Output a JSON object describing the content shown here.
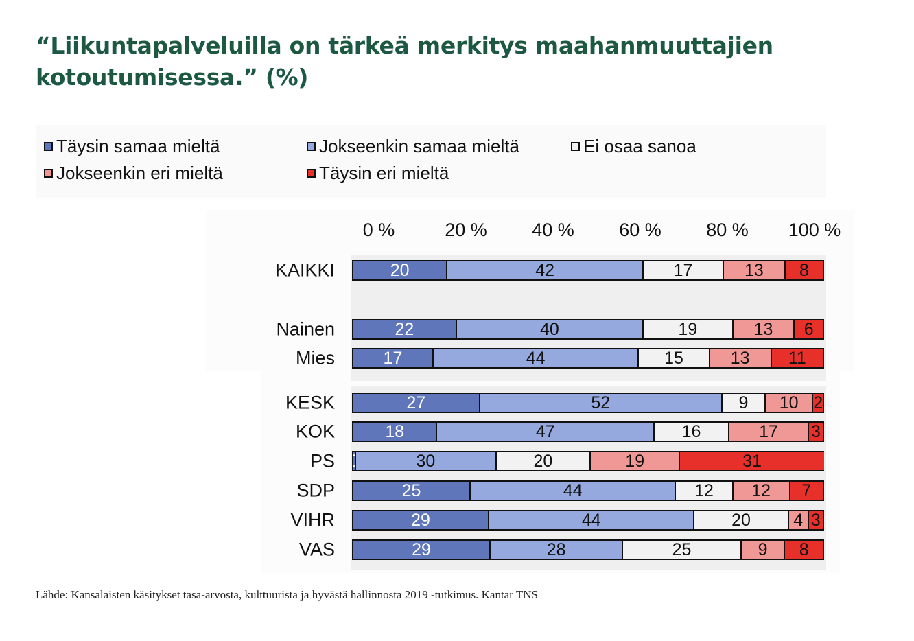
{
  "title": "“Liikuntapalveluilla on tärkeä merkitys maahanmuuttajien kotoutumisessa.” (%)",
  "source": "Lähde: Kansalaisten käsitykset tasa-arvosta, kulttuurista ja hyvästä hallinnosta 2019 -tutkimus. Kantar TNS",
  "chart_data": {
    "type": "bar",
    "orientation": "horizontal-stacked-100",
    "title": "“Liikuntapalveluilla on tärkeä merkitys maahanmuuttajien kotoutumisessa.” (%)",
    "xlim": [
      0,
      100
    ],
    "x_ticks": [
      "0 %",
      "20 %",
      "40 %",
      "60 %",
      "80 %",
      "100 %"
    ],
    "legend_position": "top",
    "categories": [
      "KAIKKI",
      "Nainen",
      "Mies",
      "KESK",
      "KOK",
      "PS",
      "SDP",
      "VIHR",
      "VAS"
    ],
    "series": [
      {
        "name": "Täysin samaa mieltä",
        "color": "#6076bb",
        "values": [
          20,
          22,
          17,
          27,
          18,
          0,
          25,
          29,
          29
        ]
      },
      {
        "name": "Jokseenkin samaa mieltä",
        "color": "#95a9df",
        "values": [
          42,
          40,
          44,
          52,
          47,
          30,
          44,
          44,
          28
        ]
      },
      {
        "name": "Ei osaa sanoa",
        "color": "#f2f2f2",
        "values": [
          17,
          19,
          15,
          9,
          16,
          20,
          12,
          20,
          25
        ]
      },
      {
        "name": "Jokseenkin eri mieltä",
        "color": "#f09896",
        "values": [
          13,
          13,
          13,
          10,
          17,
          19,
          12,
          4,
          9
        ]
      },
      {
        "name": "Täysin eri mieltä",
        "color": "#e8302a",
        "values": [
          8,
          6,
          11,
          2,
          3,
          31,
          7,
          3,
          8
        ]
      }
    ]
  }
}
